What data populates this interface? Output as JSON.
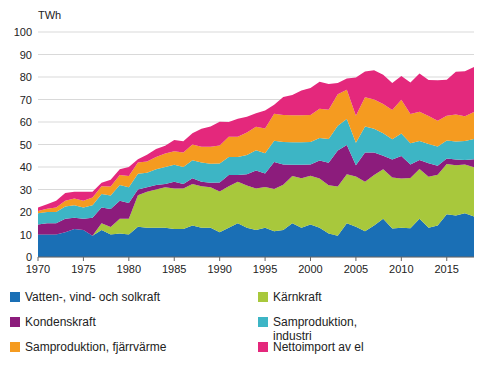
{
  "chart_data": {
    "type": "area",
    "stacked": true,
    "y_label": "TWh",
    "grid": true,
    "legend": "bottom",
    "x": [
      1970,
      1971,
      1972,
      1973,
      1974,
      1975,
      1976,
      1977,
      1978,
      1979,
      1980,
      1981,
      1982,
      1983,
      1984,
      1985,
      1986,
      1987,
      1988,
      1989,
      1990,
      1991,
      1992,
      1993,
      1994,
      1995,
      1996,
      1997,
      1998,
      1999,
      2000,
      2001,
      2002,
      2003,
      2004,
      2005,
      2006,
      2007,
      2008,
      2009,
      2010,
      2011,
      2012,
      2013,
      2014,
      2015,
      2016,
      2017,
      2018
    ],
    "xlim": [
      1970,
      2018
    ],
    "xticks": [
      1970,
      1975,
      1980,
      1985,
      1990,
      1995,
      2000,
      2005,
      2010,
      2015
    ],
    "ylim": [
      0,
      100
    ],
    "yticks": [
      0,
      10,
      20,
      30,
      40,
      50,
      60,
      70,
      80,
      90,
      100
    ],
    "series": [
      {
        "name": "Vatten-, vind- och solkraft",
        "color": "#1a6fb5",
        "values": [
          10,
          10,
          10,
          11,
          12.5,
          12,
          9.5,
          12,
          10,
          10.5,
          10,
          13.5,
          13,
          13,
          13,
          12.5,
          12.5,
          14,
          13,
          13,
          11,
          13,
          15,
          13,
          12,
          13,
          11.5,
          12,
          15,
          13,
          14.5,
          13,
          10.5,
          9.5,
          15,
          13.5,
          11.5,
          14,
          17,
          12.7,
          13,
          12.8,
          17,
          13,
          14,
          19,
          18.5,
          19.5,
          18
        ]
      },
      {
        "name": "Kärnkraft",
        "color": "#a8c83c",
        "values": [
          0,
          0,
          0,
          0,
          0,
          0,
          0,
          3,
          3.3,
          6.5,
          7,
          14,
          16,
          17,
          18,
          18,
          18,
          18.5,
          18.5,
          18,
          18.1,
          18.5,
          18.4,
          18.8,
          18.4,
          18.1,
          18.7,
          20.1,
          21,
          22,
          21.6,
          21.9,
          21.4,
          21.8,
          21.8,
          22.3,
          22,
          22.5,
          22,
          22.6,
          21.9,
          22.3,
          22.1,
          22.7,
          22.6,
          22.3,
          22.3,
          21.6,
          21.9
        ]
      },
      {
        "name": "Kondenskraft",
        "color": "#8c1c7c",
        "values": [
          4.5,
          5,
          5,
          6,
          5,
          5,
          8,
          7,
          8,
          8,
          7,
          2.5,
          2,
          2,
          1.5,
          3,
          2,
          2.5,
          2,
          2,
          4,
          5,
          3,
          5,
          8,
          6,
          12,
          9,
          5,
          6,
          5,
          8,
          10,
          16,
          13,
          5,
          13,
          10,
          6,
          8,
          10,
          6,
          4,
          6,
          4,
          2.5,
          2.5,
          2,
          3.5
        ]
      },
      {
        "name": "Samproduktion, industri",
        "color": "#3db5c5",
        "values": [
          5,
          5,
          5,
          5.5,
          5.5,
          5,
          5.5,
          6,
          6,
          7,
          7,
          7,
          6.5,
          7,
          7.5,
          7.5,
          7.5,
          8,
          8.5,
          8.5,
          8.5,
          8,
          8,
          8.5,
          9,
          9,
          9.5,
          10,
          10,
          10,
          10,
          10,
          10.5,
          11,
          11.5,
          10,
          11.5,
          10.5,
          10,
          9,
          10,
          9.5,
          8.5,
          8.5,
          8.5,
          8,
          8,
          8.5,
          9
        ]
      },
      {
        "name": "Samproduktion, fjärrvärme",
        "color": "#f59b20",
        "values": [
          1,
          1.5,
          2,
          2.5,
          3,
          3,
          3.5,
          3.5,
          4,
          4.5,
          5,
          5,
          5,
          5.5,
          6,
          6,
          6.5,
          7,
          7,
          7.5,
          8,
          9,
          9,
          10,
          10.5,
          11,
          12,
          12,
          12,
          12,
          12,
          13,
          13,
          14,
          13,
          12,
          13,
          13,
          13,
          13,
          15,
          13,
          13,
          12.5,
          11.5,
          11,
          12,
          11,
          12
        ]
      },
      {
        "name": "Nettoimport av el",
        "color": "#e4287c",
        "values": [
          1.5,
          2,
          3,
          3.5,
          3,
          4,
          2.5,
          1.5,
          3,
          2.5,
          4,
          1.5,
          3,
          3.5,
          3.5,
          5,
          5,
          5,
          8,
          9,
          10.5,
          6.5,
          8,
          7,
          6,
          8,
          4,
          8,
          9,
          11,
          12,
          12,
          11.5,
          5,
          5,
          17,
          11.5,
          13,
          13,
          12,
          10.5,
          14,
          17,
          16,
          18,
          16,
          19,
          20,
          20
        ]
      }
    ]
  }
}
